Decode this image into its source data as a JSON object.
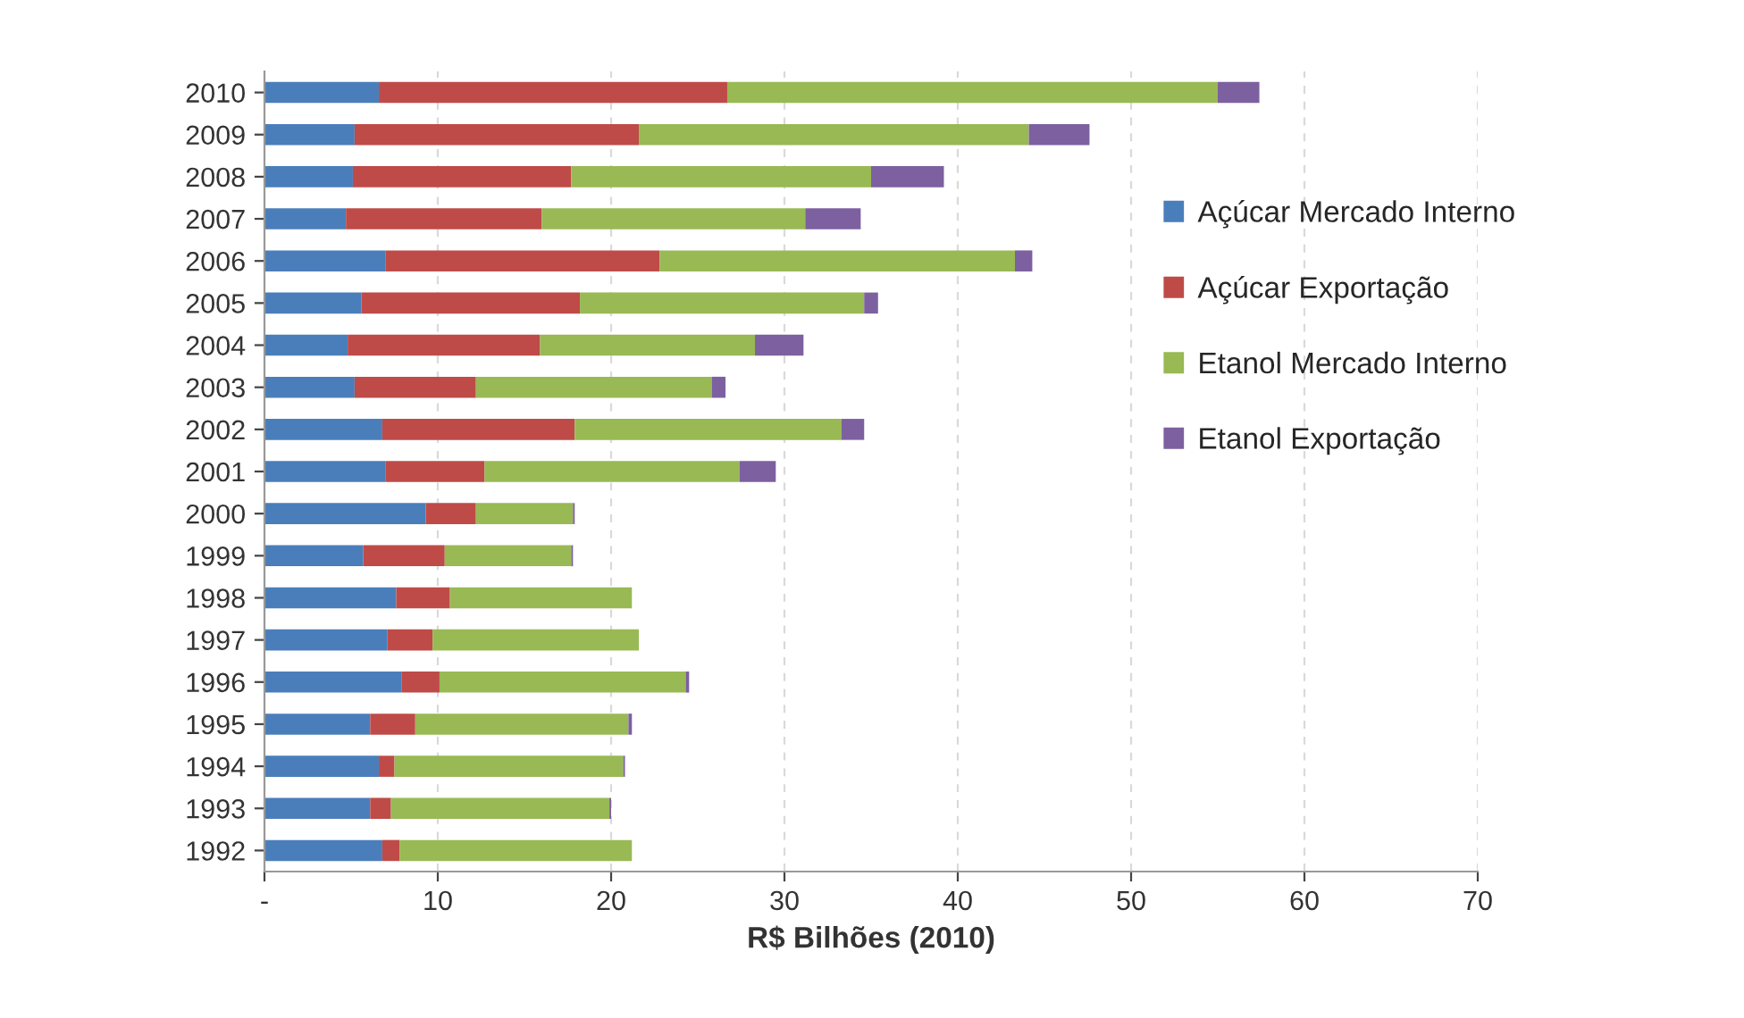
{
  "chart_data": {
    "type": "bar",
    "orientation": "horizontal",
    "stacked": true,
    "xlabel": "R$ Bilhões (2010)",
    "categories": [
      "2010",
      "2009",
      "2008",
      "2007",
      "2006",
      "2005",
      "2004",
      "2003",
      "2002",
      "2001",
      "2000",
      "1999",
      "1998",
      "1997",
      "1996",
      "1995",
      "1994",
      "1993",
      "1992"
    ],
    "series": [
      {
        "name": "Açúcar Mercado Interno",
        "color": "#4a7ebb",
        "values": [
          6.6,
          5.2,
          5.1,
          4.7,
          7.0,
          5.6,
          4.8,
          5.2,
          6.8,
          7.0,
          9.3,
          5.7,
          7.6,
          7.1,
          7.9,
          6.1,
          6.6,
          6.1,
          6.8
        ]
      },
      {
        "name": "Açúcar Exportação",
        "color": "#be4b48",
        "values": [
          20.1,
          16.4,
          12.6,
          11.3,
          15.8,
          12.6,
          11.1,
          7.0,
          11.1,
          5.7,
          2.9,
          4.7,
          3.1,
          2.6,
          2.2,
          2.6,
          0.9,
          1.2,
          1.0
        ]
      },
      {
        "name": "Etanol Mercado Interno",
        "color": "#98b954",
        "values": [
          28.3,
          22.5,
          17.3,
          15.2,
          20.5,
          16.4,
          12.4,
          13.6,
          15.4,
          14.7,
          5.6,
          7.3,
          10.5,
          11.9,
          14.2,
          12.3,
          13.2,
          12.6,
          13.4
        ]
      },
      {
        "name": "Etanol Exportação",
        "color": "#7d60a0",
        "values": [
          2.4,
          3.5,
          4.2,
          3.2,
          1.0,
          0.8,
          2.8,
          0.8,
          1.3,
          2.1,
          0.1,
          0.1,
          0.0,
          0.0,
          0.2,
          0.2,
          0.1,
          0.1,
          0.0
        ]
      }
    ],
    "xlim": [
      0,
      70
    ],
    "xticks": [
      {
        "value": 0,
        "label": "-"
      },
      10,
      20,
      30,
      40,
      50,
      60,
      70
    ],
    "grid": "x",
    "legend": "right"
  }
}
